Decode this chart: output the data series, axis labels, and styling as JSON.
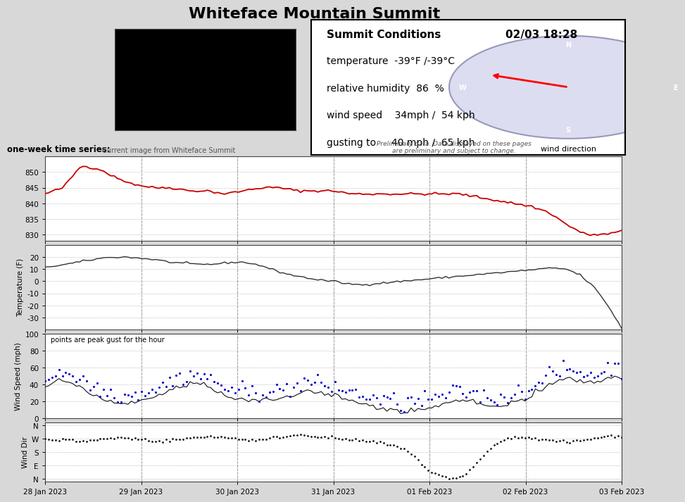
{
  "title": "Whiteface Mountain Summit",
  "subtitle_left": "one-week time series:",
  "date_label": "02/03 18:28",
  "conditions_title": "Summit Conditions",
  "conditions": {
    "temperature": "temperature  -39°F /-39°C",
    "humidity": "relative humidity  86  %",
    "wind_speed": "wind speed    34mph /  54 kph",
    "gusting": "gusting to     40 mph /  65 kph",
    "wind_dir_label": "wind direction"
  },
  "x_tick_labels": [
    "28 Jan 2023",
    "29 Jan 2023",
    "30 Jan 2023",
    "31 Jan 2023",
    "01 Feb 2023",
    "02 Feb 2023",
    "03 Feb 2023"
  ],
  "pressure_ylim": [
    828,
    855
  ],
  "pressure_yticks": [
    830,
    835,
    840,
    845,
    850
  ],
  "temp_ylim": [
    -40,
    30
  ],
  "temp_yticks": [
    -30,
    -20,
    -10,
    0,
    10,
    20
  ],
  "wind_ylim": [
    0,
    100
  ],
  "wind_yticks": [
    0,
    20,
    40,
    60,
    80,
    100
  ],
  "wind_dir_yticks_labels": [
    "N",
    "W",
    "S",
    "E",
    "N"
  ],
  "wind_dir_yticks_vals": [
    4,
    3,
    2,
    1,
    0
  ],
  "wind_gust_label": "points are peak gust for the hour",
  "bg_color": "#d8d8d8",
  "plot_bg": "#ffffff",
  "line_color_pressure": "#cc0000",
  "line_color_temp": "#333333",
  "line_color_wind": "#111111",
  "dot_color_gust": "#0000cc",
  "dot_color_dir": "#111111",
  "grid_color": "#aaaaaa",
  "preliminary_text": "Preliminary data. Data displayed on these pages\nare preliminary and subject to change.",
  "current_image_text": "Current image from Whiteface Summit"
}
